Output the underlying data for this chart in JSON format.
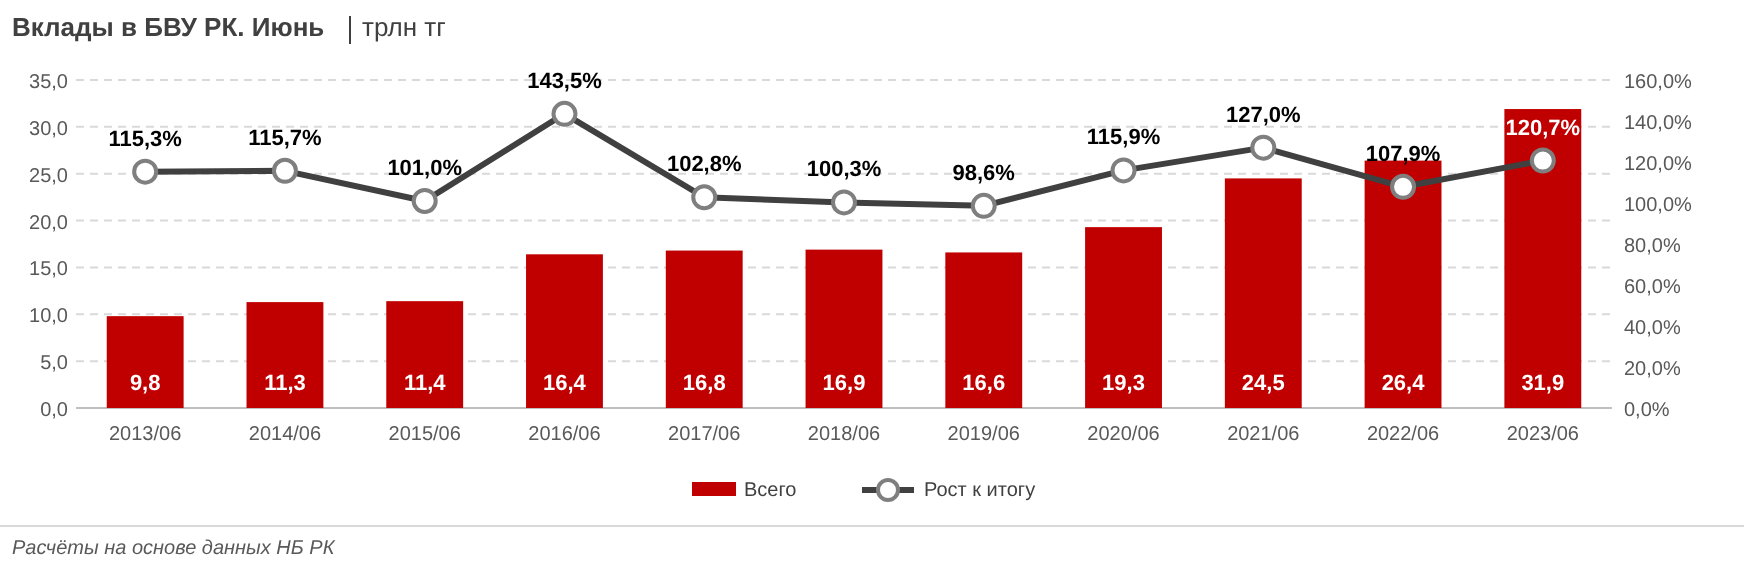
{
  "chart_data": {
    "type": "bar",
    "title": "Вклады в БВУ РК. Июнь",
    "subtitle": "трлн тг",
    "categories": [
      "2013/06",
      "2014/06",
      "2015/06",
      "2016/06",
      "2017/06",
      "2018/06",
      "2019/06",
      "2020/06",
      "2021/06",
      "2022/06",
      "2023/06"
    ],
    "series": [
      {
        "name": "Всего",
        "color": "#c00000",
        "values": [
          9.8,
          11.3,
          11.4,
          16.4,
          16.8,
          16.9,
          16.6,
          19.3,
          24.5,
          26.4,
          31.9
        ],
        "value_labels": [
          "9,8",
          "11,3",
          "11,4",
          "16,4",
          "16,8",
          "16,9",
          "16,6",
          "19,3",
          "24,5",
          "26,4",
          "31,9"
        ]
      },
      {
        "name": "Рост к итогу",
        "type": "line",
        "axis": "y2",
        "color": "#404040",
        "marker": "circle",
        "values": [
          115.3,
          115.7,
          101.0,
          143.5,
          102.8,
          100.3,
          98.6,
          115.9,
          127.0,
          107.9,
          120.7
        ],
        "value_labels": [
          "115,3%",
          "115,7%",
          "101,0%",
          "143,5%",
          "102,8%",
          "100,3%",
          "98,6%",
          "115,9%",
          "127,0%",
          "107,9%",
          "120,7%"
        ]
      }
    ],
    "ylim": [
      0,
      35
    ],
    "yticks": [
      {
        "value": 0,
        "label": "0,0"
      },
      {
        "value": 5,
        "label": "5,0"
      },
      {
        "value": 10,
        "label": "10,0"
      },
      {
        "value": 15,
        "label": "15,0"
      },
      {
        "value": 20,
        "label": "20,0"
      },
      {
        "value": 25,
        "label": "25,0"
      },
      {
        "value": 30,
        "label": "30,0"
      },
      {
        "value": 35,
        "label": "35,0"
      }
    ],
    "y2lim": [
      0,
      160
    ],
    "y2ticks": [
      {
        "value": 0,
        "label": "0,0%"
      },
      {
        "value": 20,
        "label": "20,0%"
      },
      {
        "value": 40,
        "label": "40,0%"
      },
      {
        "value": 60,
        "label": "60,0%"
      },
      {
        "value": 80,
        "label": "80,0%"
      },
      {
        "value": 100,
        "label": "100,0%"
      },
      {
        "value": 120,
        "label": "120,0%"
      },
      {
        "value": 140,
        "label": "140,0%"
      },
      {
        "value": 160,
        "label": "160,0%"
      }
    ],
    "grid": "y",
    "legend": "bottom",
    "annotations": [
      "Расчёты на основе данных НБ РК"
    ]
  }
}
